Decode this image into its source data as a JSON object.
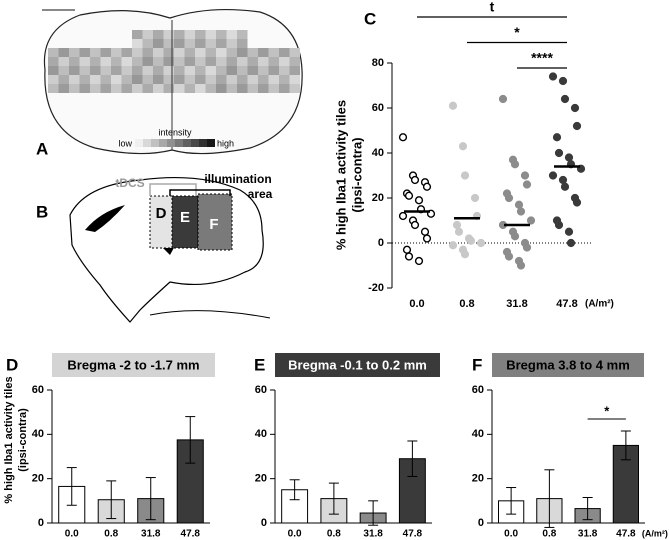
{
  "panel_letters": [
    "A",
    "B",
    "C",
    "D",
    "E",
    "F"
  ],
  "panel_a": {
    "colorbar_title": "intensity",
    "low": "low",
    "high": "high"
  },
  "panel_b": {
    "tdcs": "tDCS",
    "illumination": "illumination",
    "area": "area",
    "regions": [
      "D",
      "E",
      "F"
    ]
  },
  "chart_data": [
    {
      "type": "strip",
      "y_label": [
        "% high Iba1 activity tiles",
        "(ipsi-contra)"
      ],
      "categories": [
        "0.0",
        "0.8",
        "31.8",
        "47.8"
      ],
      "x_unit": "(A/m²)",
      "ylim": [
        -20,
        80
      ],
      "yticks": [
        -20,
        0,
        20,
        40,
        60,
        80
      ],
      "zero_line": true,
      "groups": [
        {
          "fill": "#ffffff",
          "stroke": "#000000",
          "mean": 14,
          "values": [
            47,
            30,
            28,
            27,
            25,
            22,
            21,
            19,
            15,
            13,
            12,
            10,
            8,
            5,
            2,
            -3,
            -6,
            -8
          ]
        },
        {
          "fill": "#c8c8c8",
          "stroke": "#c8c8c8",
          "mean": 11,
          "values": [
            61,
            43,
            30,
            20,
            12,
            8,
            5,
            2,
            1,
            0,
            -1,
            -3,
            -5
          ]
        },
        {
          "fill": "#8c8c8c",
          "stroke": "#8c8c8c",
          "mean": 8,
          "values": [
            64,
            37,
            35,
            30,
            26,
            22,
            20,
            17,
            14,
            10,
            8,
            5,
            3,
            0,
            -2,
            -4,
            -6,
            -8,
            -10
          ]
        },
        {
          "fill": "#3a3a3a",
          "stroke": "#3a3a3a",
          "mean": 34,
          "values": [
            74,
            72,
            64,
            60,
            52,
            47,
            40,
            38,
            35,
            33,
            30,
            28,
            25,
            20,
            18,
            10,
            8,
            5,
            0
          ]
        }
      ],
      "significance": [
        {
          "from": 0,
          "to": 3,
          "label": "t"
        },
        {
          "from": 1,
          "to": 3,
          "label": "*"
        },
        {
          "from": 2,
          "to": 3,
          "label": "****"
        }
      ]
    },
    {
      "type": "bar",
      "title": "Bregma -2 to -1.7 mm",
      "title_bg": "#d4d4d4",
      "title_color": "#000000",
      "y_label": [
        "% high Iba1 activity tiles",
        "(ipsi-contra)"
      ],
      "categories": [
        "0.0",
        "0.8",
        "31.8",
        "47.8"
      ],
      "values": [
        16.5,
        10.5,
        11,
        37.5
      ],
      "errors": [
        8.5,
        8.5,
        9.5,
        10.5
      ],
      "colors": [
        "#ffffff",
        "#d9d9d9",
        "#8a8a8a",
        "#3a3a3a"
      ],
      "ylim": [
        0,
        60
      ],
      "yticks": [
        0,
        20,
        40,
        60
      ]
    },
    {
      "type": "bar",
      "title": "Bregma -0.1 to 0.2 mm",
      "title_bg": "#3a3a3a",
      "title_color": "#ffffff",
      "categories": [
        "0.0",
        "0.8",
        "31.8",
        "47.8"
      ],
      "values": [
        15,
        11,
        4.5,
        29
      ],
      "errors": [
        4.5,
        7,
        5.5,
        8
      ],
      "colors": [
        "#ffffff",
        "#d9d9d9",
        "#8a8a8a",
        "#3a3a3a"
      ],
      "ylim": [
        0,
        60
      ],
      "yticks": [
        0,
        20,
        40,
        60
      ]
    },
    {
      "type": "bar",
      "title": "Bregma 3.8 to 4 mm",
      "title_bg": "#808080",
      "title_color": "#000000",
      "categories": [
        "0.0",
        "0.8",
        "31.8",
        "47.8"
      ],
      "x_unit": "(A/m²)",
      "values": [
        10,
        11,
        6.5,
        35
      ],
      "errors": [
        6,
        13,
        5,
        6.5
      ],
      "colors": [
        "#ffffff",
        "#d9d9d9",
        "#8a8a8a",
        "#3a3a3a"
      ],
      "ylim": [
        0,
        60
      ],
      "yticks": [
        0,
        20,
        40,
        60
      ],
      "significance": [
        {
          "from": 2,
          "to": 3,
          "label": "*"
        }
      ]
    }
  ]
}
